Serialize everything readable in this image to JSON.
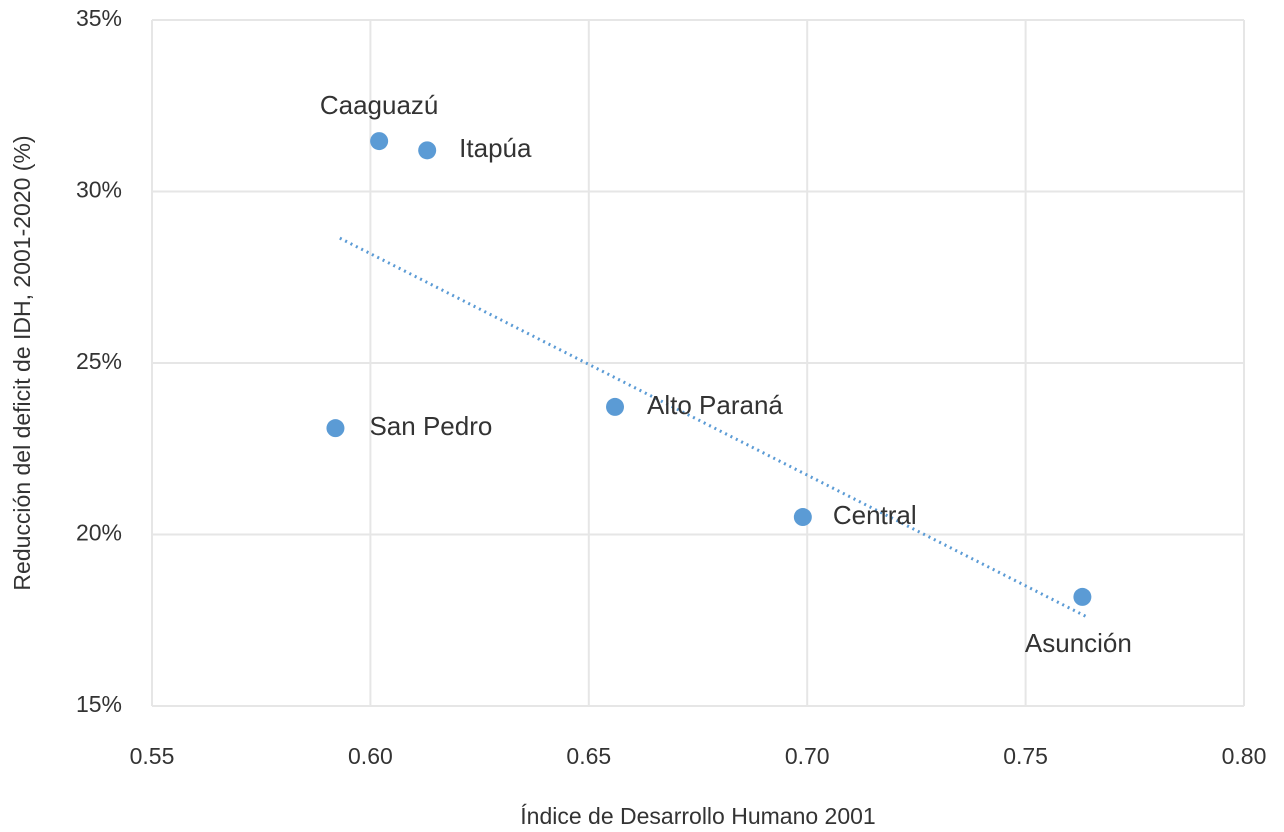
{
  "chart_data": {
    "type": "scatter",
    "x_label": "Índice de Desarrollo Humano 2001",
    "y_label": "Reducción del deficit de IDH, 2001-2020 (%)",
    "series": [
      {
        "color": "#5b9bd5",
        "labels": [
          "Caaguazú",
          "Itapúa",
          "San Pedro",
          "Alto Paraná",
          "Central",
          "Asunción"
        ],
        "x": [
          0.602,
          0.613,
          0.592,
          0.656,
          0.699,
          0.763
        ],
        "values": [
          31.47,
          31.2,
          23.1,
          23.72,
          20.51,
          18.18
        ]
      }
    ],
    "trendline": {
      "color": "#5b9bd5",
      "x": [
        0.593,
        0.764
      ],
      "values": [
        28.64,
        17.6
      ]
    },
    "xlim": [
      0.55,
      0.8
    ],
    "xticks": [
      0.55,
      {
        "value": 0.6,
        "label": "0.60"
      },
      0.65,
      {
        "value": 0.7,
        "label": "0.70"
      },
      0.75,
      {
        "value": 0.8,
        "label": "0.80"
      }
    ],
    "ylim": [
      15,
      35
    ],
    "yticks": [
      {
        "value": 15,
        "label": "15%"
      },
      {
        "value": 20,
        "label": "20%"
      },
      {
        "value": 25,
        "label": "25%"
      },
      {
        "value": 30,
        "label": "30%"
      },
      {
        "value": 35,
        "label": "35%"
      }
    ],
    "grid": true
  }
}
